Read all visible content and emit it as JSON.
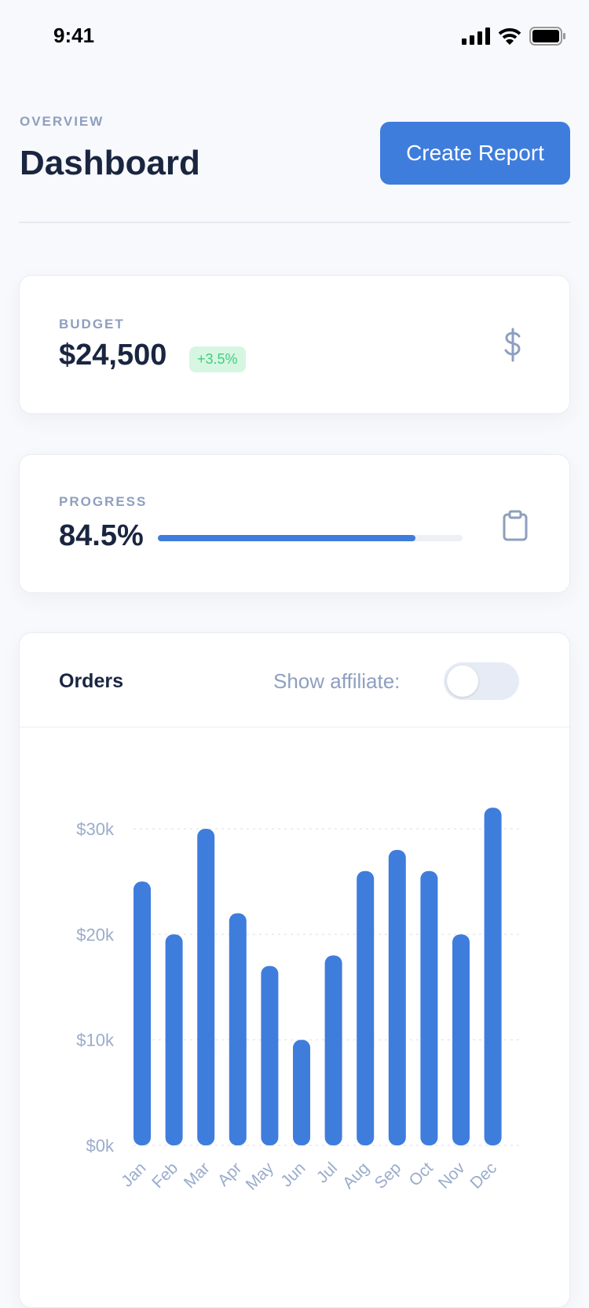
{
  "status_bar": {
    "time": "9:41",
    "icons": [
      "cellular-signal-icon",
      "wifi-icon",
      "battery-icon"
    ]
  },
  "header": {
    "eyebrow": "OVERVIEW",
    "title": "Dashboard",
    "create_button": "Create Report"
  },
  "budget": {
    "label": "BUDGET",
    "value": "$24,500",
    "change": "+3.5%",
    "icon": "dollar-icon"
  },
  "progress": {
    "label": "PROGRESS",
    "value": "84.5%",
    "percent": 84.5,
    "icon": "clipboard-icon"
  },
  "orders": {
    "title": "Orders",
    "toggle_label": "Show affiliate:",
    "toggle_on": false
  },
  "colors": {
    "accent": "#3f7ddd",
    "positive": "#3fcf7c",
    "muted": "#8e9fbf"
  },
  "chart_data": {
    "type": "bar",
    "categories": [
      "Jan",
      "Feb",
      "Mar",
      "Apr",
      "May",
      "Jun",
      "Jul",
      "Aug",
      "Sep",
      "Oct",
      "Nov",
      "Dec"
    ],
    "values": [
      25000,
      20000,
      30000,
      22000,
      17000,
      10000,
      18000,
      26000,
      28000,
      26000,
      20000,
      32000
    ],
    "yticks": [
      "$0k",
      "$10k",
      "$20k",
      "$30k"
    ],
    "ytick_values": [
      0,
      10000,
      20000,
      30000
    ],
    "ylim": [
      0,
      30000
    ],
    "grid": true
  }
}
